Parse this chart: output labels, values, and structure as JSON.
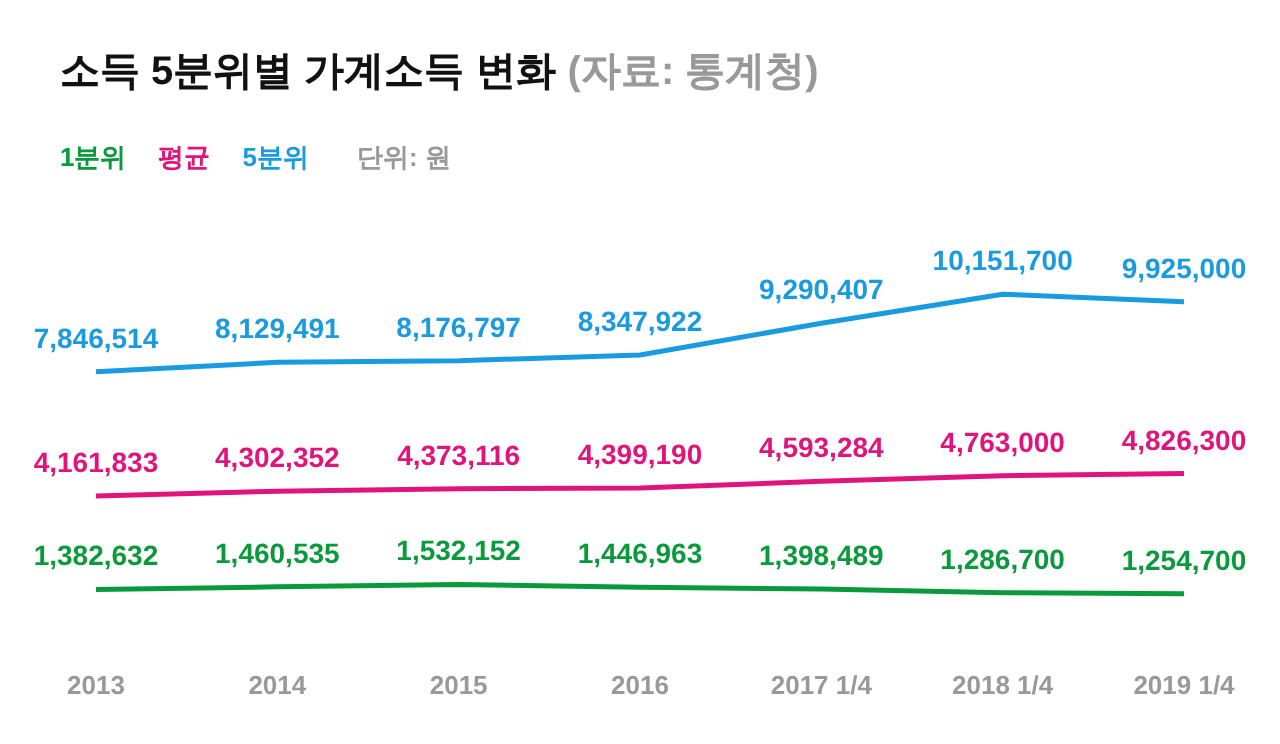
{
  "chart_data": {
    "type": "line",
    "title": "소득 5분위별 가계소득 변화",
    "subtitle": "(자료: 통계청)",
    "annotations": [
      "단위: 원"
    ],
    "categories": [
      "2013",
      "2014",
      "2015",
      "2016",
      "2017 1/4",
      "2018 1/4",
      "2019 1/4"
    ],
    "series": [
      {
        "name": "1분위",
        "color": "#0a9a3c",
        "values": [
          1382632,
          1460535,
          1532152,
          1446963,
          1398489,
          1286700,
          1254700
        ],
        "value_labels": [
          "1,382,632",
          "1,460,535",
          "1,532,152",
          "1,446,963",
          "1,398,489",
          "1,286,700",
          "1,254,700"
        ]
      },
      {
        "name": "평균",
        "color": "#e0147a",
        "values": [
          4161833,
          4302352,
          4373116,
          4399190,
          4593284,
          4763000,
          4826300
        ],
        "value_labels": [
          "4,161,833",
          "4,302,352",
          "4,373,116",
          "4,399,190",
          "4,593,284",
          "4,763,000",
          "4,826,300"
        ]
      },
      {
        "name": "5분위",
        "color": "#1a9be0",
        "values": [
          7846514,
          8129491,
          8176797,
          8347922,
          9290407,
          10151700,
          9925000
        ],
        "value_labels": [
          "7,846,514",
          "8,129,491",
          "8,176,797",
          "8,347,922",
          "9,290,407",
          "10,151,700",
          "9,925,000"
        ]
      }
    ],
    "legend": "top left",
    "marker": "none",
    "line_style": "solid"
  }
}
